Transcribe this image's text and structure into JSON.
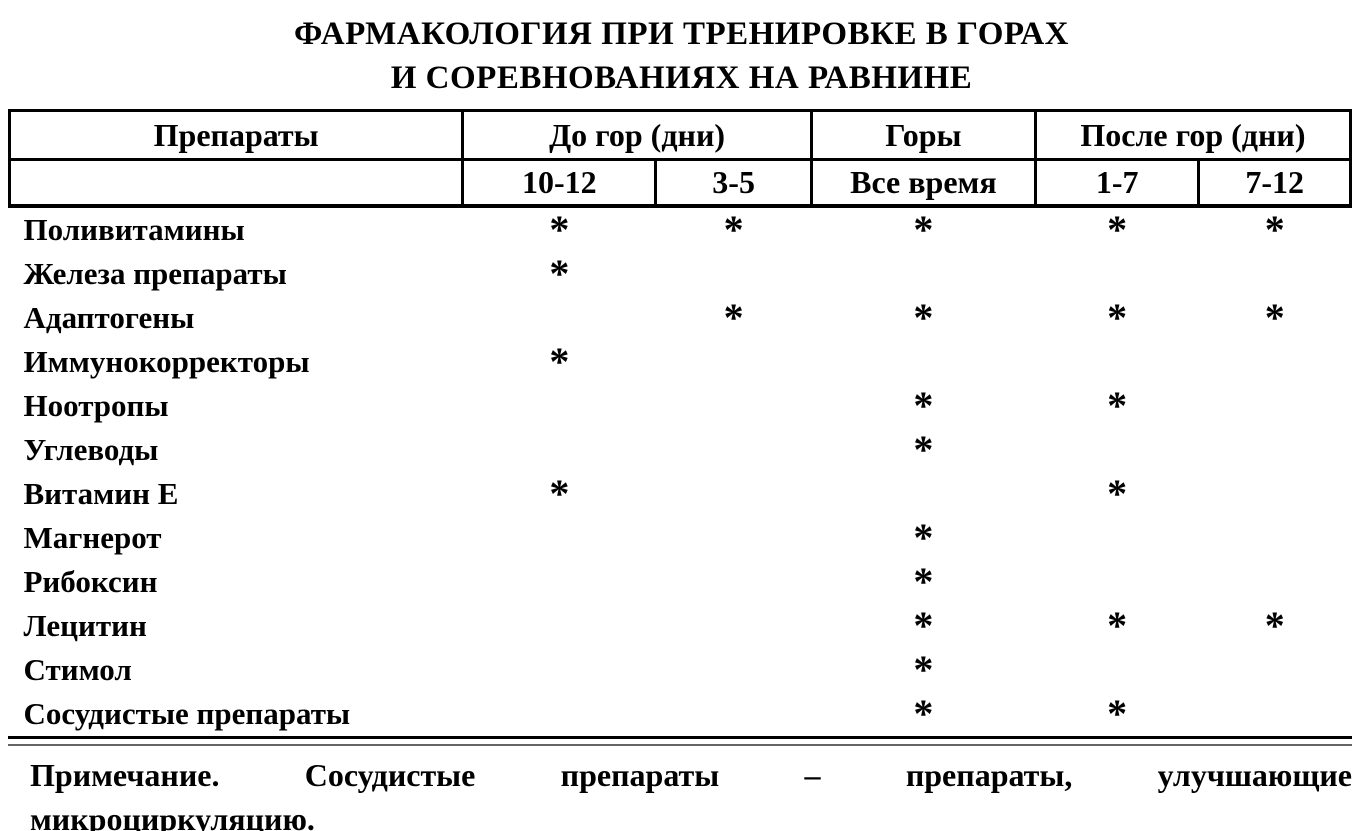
{
  "page": {
    "background_color": "#ffffff",
    "text_color": "#000000"
  },
  "title": {
    "line1": "ФАРМАКОЛОГИЯ ПРИ ТРЕНИРОВКЕ В ГОРАХ",
    "line2": "И СОРЕВНОВАНИЯХ НА РАВНИНЕ"
  },
  "table": {
    "marker": "*",
    "header": {
      "drugs": "Препараты",
      "before_mountains": "До гор (дни)",
      "mountains": "Горы",
      "after_mountains": "После гор (дни)",
      "sub_before_1": "10-12",
      "sub_before_2": "3-5",
      "sub_mountains": "Все время",
      "sub_after_1": "1-7",
      "sub_after_2": "7-12"
    },
    "rows": [
      {
        "name": "Поливитамины",
        "marks": [
          true,
          true,
          true,
          true,
          true
        ]
      },
      {
        "name": "Железа препараты",
        "marks": [
          true,
          false,
          false,
          false,
          false
        ]
      },
      {
        "name": "Адаптогены",
        "marks": [
          false,
          true,
          true,
          true,
          true
        ]
      },
      {
        "name": "Иммунокорректоры",
        "marks": [
          true,
          false,
          false,
          false,
          false
        ]
      },
      {
        "name": "Ноотропы",
        "marks": [
          false,
          false,
          true,
          true,
          false
        ]
      },
      {
        "name": "Углеводы",
        "marks": [
          false,
          false,
          true,
          false,
          false
        ]
      },
      {
        "name": "Витамин Е",
        "marks": [
          true,
          false,
          false,
          true,
          false
        ]
      },
      {
        "name": "Магнерот",
        "marks": [
          false,
          false,
          true,
          false,
          false
        ]
      },
      {
        "name": "Рибоксин",
        "marks": [
          false,
          false,
          true,
          false,
          false
        ]
      },
      {
        "name": "Лецитин",
        "marks": [
          false,
          false,
          true,
          true,
          true
        ]
      },
      {
        "name": "Стимол",
        "marks": [
          false,
          false,
          true,
          false,
          false
        ]
      },
      {
        "name": "Сосудистые препараты",
        "marks": [
          false,
          false,
          true,
          true,
          false
        ]
      }
    ]
  },
  "note": {
    "line1": "Примечание. Сосудистые препараты – препараты, улучшающие",
    "line2": "микроциркуляцию."
  }
}
